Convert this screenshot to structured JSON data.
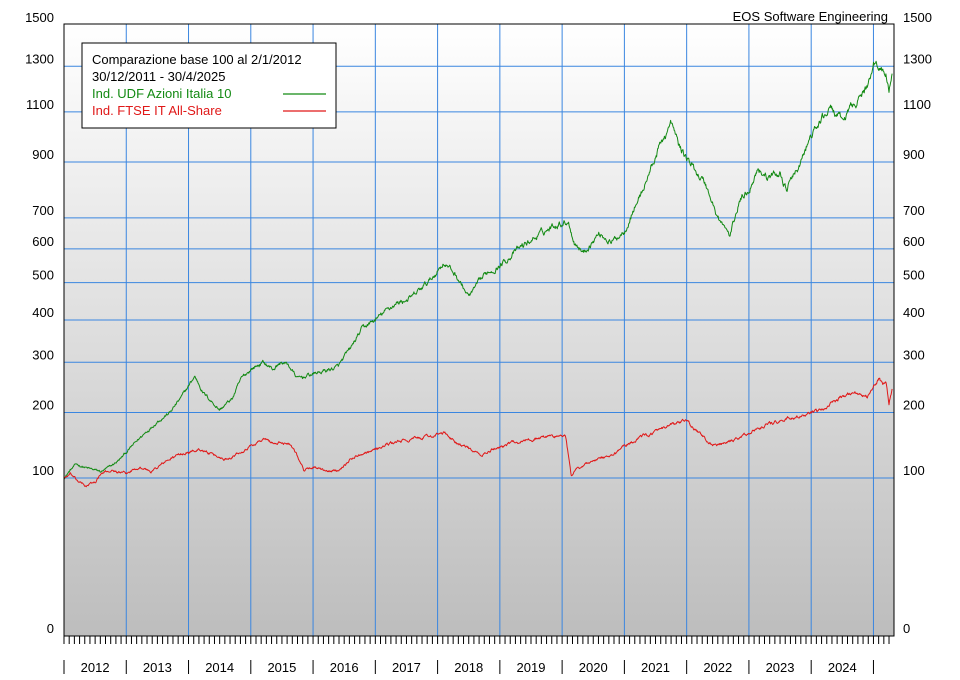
{
  "credit": "EOS Software Engineering",
  "colors": {
    "bg_top": "#ffffff",
    "bg_bottom": "#bdbdbd",
    "grid": "#3a86e0",
    "udf": "#138a13",
    "ftse": "#e01818"
  },
  "chart_data": {
    "type": "line",
    "legend": {
      "title": "Comparazione base 100 al 2/1/2012",
      "range": "30/12/2011 - 30/4/2025",
      "placement": "top-left"
    },
    "y_ticks": [
      0,
      100,
      200,
      300,
      400,
      500,
      600,
      700,
      900,
      1100,
      1300,
      1500
    ],
    "y_labels": [
      "0",
      "100",
      "200",
      "300",
      "400",
      "500",
      "600",
      "700",
      "900",
      "1100",
      "1300",
      "1500"
    ],
    "x_labels": [
      "2012",
      "2013",
      "2014",
      "2015",
      "2016",
      "2017",
      "2018",
      "2019",
      "2020",
      "2021",
      "2022",
      "2023",
      "2024"
    ],
    "x_range": [
      2012.0,
      2025.33
    ],
    "grid": true,
    "series": [
      {
        "name": "Ind. UDF Azioni Italia 10",
        "color": "#138a13",
        "x": [
          2012.0,
          2012.1,
          2012.2,
          2012.4,
          2012.6,
          2012.75,
          2012.9,
          2013.1,
          2013.3,
          2013.5,
          2013.7,
          2013.9,
          2014.1,
          2014.25,
          2014.5,
          2014.7,
          2014.85,
          2015.0,
          2015.2,
          2015.35,
          2015.5,
          2015.6,
          2015.75,
          2016.0,
          2016.15,
          2016.4,
          2016.6,
          2016.8,
          2017.0,
          2017.3,
          2017.6,
          2017.9,
          2018.1,
          2018.3,
          2018.5,
          2018.8,
          2019.0,
          2019.3,
          2019.6,
          2019.9,
          2020.1,
          2020.2,
          2020.35,
          2020.6,
          2020.8,
          2021.0,
          2021.3,
          2021.6,
          2021.75,
          2021.9,
          2022.1,
          2022.3,
          2022.5,
          2022.7,
          2022.85,
          2023.0,
          2023.15,
          2023.3,
          2023.5,
          2023.6,
          2023.8,
          2024.0,
          2024.3,
          2024.5,
          2024.7,
          2024.9,
          2025.0,
          2025.1,
          2025.2,
          2025.25,
          2025.3
        ],
        "values": [
          100,
          110,
          118,
          112,
          108,
          115,
          125,
          145,
          165,
          185,
          200,
          230,
          270,
          235,
          205,
          225,
          265,
          285,
          300,
          285,
          300,
          295,
          265,
          275,
          280,
          290,
          330,
          380,
          400,
          440,
          460,
          510,
          560,
          520,
          460,
          530,
          550,
          600,
          640,
          680,
          690,
          620,
          590,
          650,
          620,
          660,
          800,
          980,
          1050,
          950,
          880,
          820,
          700,
          640,
          760,
          800,
          880,
          840,
          860,
          800,
          880,
          1000,
          1120,
          1060,
          1140,
          1200,
          1320,
          1300,
          1260,
          1200,
          1250
        ]
      },
      {
        "name": "Ind. FTSE IT All-Share",
        "color": "#e01818",
        "x": [
          2012.0,
          2012.1,
          2012.2,
          2012.35,
          2012.5,
          2012.6,
          2012.75,
          2013.0,
          2013.2,
          2013.4,
          2013.6,
          2013.8,
          2014.0,
          2014.2,
          2014.4,
          2014.6,
          2014.8,
          2015.0,
          2015.2,
          2015.4,
          2015.6,
          2015.7,
          2015.85,
          2016.0,
          2016.2,
          2016.4,
          2016.6,
          2016.8,
          2017.0,
          2017.3,
          2017.6,
          2017.9,
          2018.1,
          2018.3,
          2018.5,
          2018.7,
          2018.9,
          2019.2,
          2019.5,
          2019.8,
          2020.05,
          2020.15,
          2020.2,
          2020.4,
          2020.6,
          2020.8,
          2021.0,
          2021.3,
          2021.6,
          2021.8,
          2022.0,
          2022.2,
          2022.35,
          2022.5,
          2022.7,
          2022.9,
          2023.1,
          2023.3,
          2023.5,
          2023.7,
          2023.9,
          2024.1,
          2024.3,
          2024.5,
          2024.7,
          2024.9,
          2025.0,
          2025.1,
          2025.15,
          2025.2,
          2025.25,
          2025.3
        ],
        "values": [
          100,
          105,
          97,
          90,
          95,
          105,
          110,
          105,
          115,
          108,
          120,
          130,
          135,
          140,
          130,
          125,
          135,
          145,
          155,
          148,
          150,
          140,
          110,
          115,
          108,
          110,
          125,
          135,
          140,
          150,
          155,
          160,
          165,
          150,
          140,
          130,
          140,
          150,
          155,
          160,
          160,
          100,
          110,
          120,
          125,
          130,
          145,
          160,
          170,
          180,
          185,
          165,
          150,
          145,
          150,
          160,
          170,
          180,
          185,
          190,
          195,
          200,
          215,
          230,
          240,
          230,
          250,
          265,
          250,
          260,
          215,
          245
        ]
      }
    ]
  }
}
